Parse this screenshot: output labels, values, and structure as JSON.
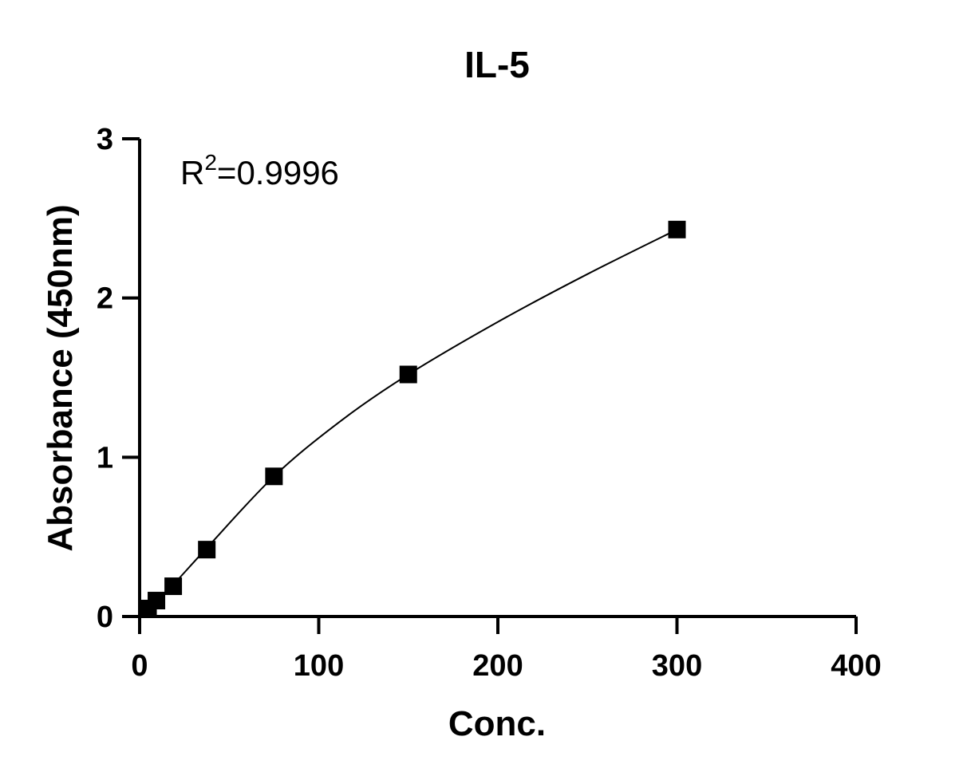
{
  "chart_data": {
    "type": "scatter",
    "title": "IL-5",
    "xlabel": "Conc.",
    "ylabel": "Absorbance (450nm)",
    "xlim": [
      0,
      400
    ],
    "ylim": [
      0,
      3
    ],
    "xticks": [
      0,
      100,
      200,
      300,
      400
    ],
    "yticks": [
      0,
      1,
      2,
      3
    ],
    "grid": false,
    "annotation": {
      "base": "R",
      "sup": "2",
      "rest": "=0.9996"
    },
    "series": [
      {
        "marker": "square",
        "color": "#000000",
        "points": [
          {
            "x": 4.69,
            "y": 0.05
          },
          {
            "x": 9.38,
            "y": 0.1
          },
          {
            "x": 18.75,
            "y": 0.19
          },
          {
            "x": 37.5,
            "y": 0.42
          },
          {
            "x": 75,
            "y": 0.88
          },
          {
            "x": 150,
            "y": 1.52
          },
          {
            "x": 300,
            "y": 2.43
          }
        ]
      }
    ],
    "fit_curve": {
      "color": "#000000",
      "x": [
        0,
        4.69,
        9.38,
        18.75,
        37.5,
        75,
        112.5,
        150,
        200,
        250,
        300
      ],
      "y": [
        0,
        0.05,
        0.1,
        0.2,
        0.43,
        0.88,
        1.23,
        1.52,
        1.85,
        2.15,
        2.43
      ]
    }
  }
}
